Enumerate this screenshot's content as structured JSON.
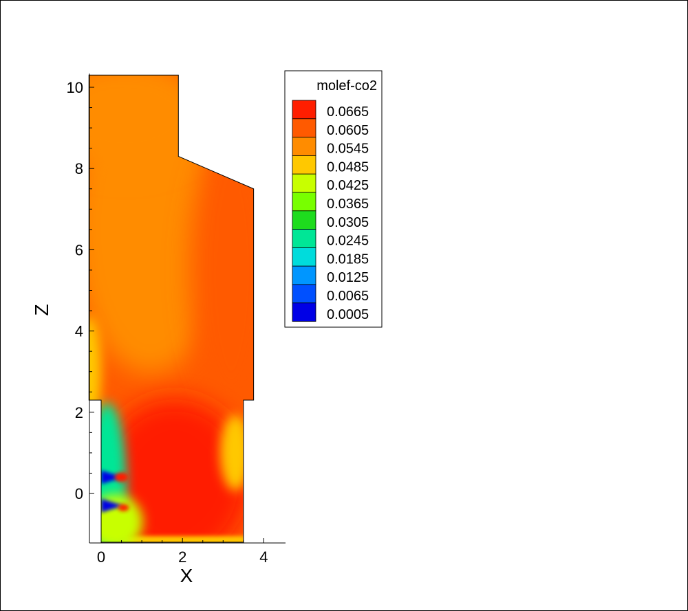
{
  "chart_data": {
    "type": "heatmap",
    "title": "",
    "variable": "molef-co2",
    "xlabel": "X",
    "ylabel": "Z",
    "xlim": [
      -0.3,
      4.5
    ],
    "ylim": [
      -1.2,
      10.3
    ],
    "x_ticks": [
      0,
      2,
      4
    ],
    "x_tick_labels": [
      "0",
      "2",
      "4"
    ],
    "y_ticks": [
      0,
      2,
      4,
      6,
      8,
      10
    ],
    "y_tick_labels": [
      "0",
      "2",
      "4",
      "6",
      "8",
      "10"
    ],
    "legend": {
      "title": "molef-co2",
      "placement": "right of plot",
      "levels": [
        "0.0665",
        "0.0605",
        "0.0545",
        "0.0485",
        "0.0425",
        "0.0365",
        "0.0305",
        "0.0245",
        "0.0185",
        "0.0125",
        "0.0065",
        "0.0005"
      ],
      "colors": [
        "#ff1e00",
        "#ff5a00",
        "#ff8c00",
        "#ffc800",
        "#c8ff00",
        "#78ff00",
        "#1edc1e",
        "#00e696",
        "#00dcdc",
        "#0096ff",
        "#0050ff",
        "#0000e6"
      ]
    },
    "domain_outline": [
      [
        0,
        -1.2
      ],
      [
        3.5,
        -1.2
      ],
      [
        3.5,
        2.3
      ],
      [
        3.75,
        2.3
      ],
      [
        3.75,
        7.5
      ],
      [
        1.9,
        8.3
      ],
      [
        1.9,
        10.3
      ],
      [
        -0.3,
        10.3
      ],
      [
        -0.3,
        2.3
      ],
      [
        0,
        2.3
      ]
    ],
    "field_regions": [
      {
        "name": "upper-region",
        "center": [
          1.2,
          6.5
        ],
        "value": 0.056
      },
      {
        "name": "right-wall-high",
        "center": [
          3.2,
          5.5
        ],
        "value": 0.063
      },
      {
        "name": "lower-core",
        "center": [
          1.8,
          0.3
        ],
        "value": 0.064
      },
      {
        "name": "right-pocket-low",
        "center": [
          3.3,
          1.0
        ],
        "value": 0.049
      },
      {
        "name": "inlet-jet-1",
        "center": [
          0.1,
          0.4
        ],
        "value": 0.003
      },
      {
        "name": "inlet-jet-2",
        "center": [
          0.1,
          -0.3
        ],
        "value": 0.003
      },
      {
        "name": "inlet-hot-spot",
        "center": [
          0.5,
          0.4
        ],
        "value": 0.067
      }
    ]
  }
}
